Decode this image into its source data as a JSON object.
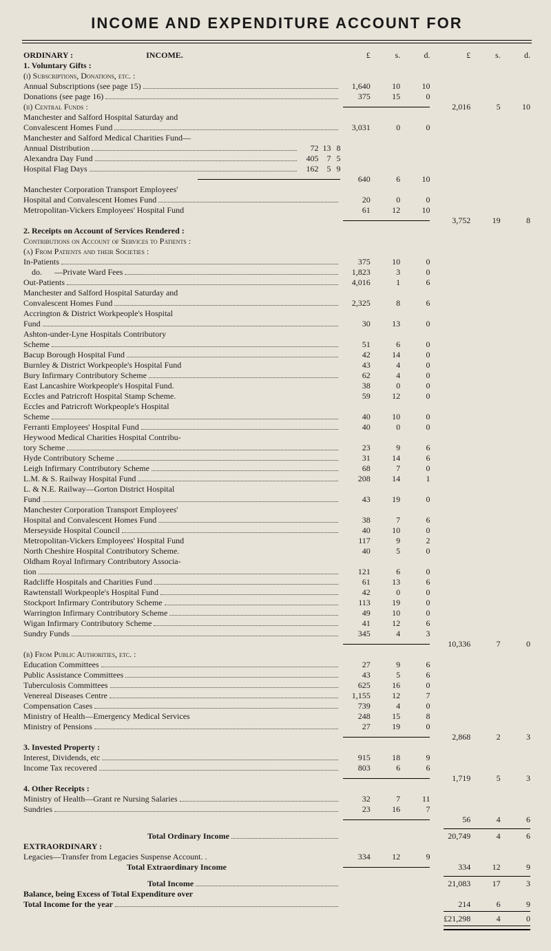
{
  "title": "INCOME AND EXPENDITURE ACCOUNT FOR",
  "columns_header": {
    "inner": [
      "£",
      "s.",
      "d."
    ],
    "outer": [
      "£",
      "s.",
      "d."
    ]
  },
  "colors": {
    "paper": "#e8e3d8",
    "ink": "#1a1a1a",
    "rule": "#000000",
    "dots": "#444444"
  },
  "ord_heading": "ORDINARY :",
  "income_heading": "INCOME.",
  "s1_heading": "1. Voluntary Gifts :",
  "s1_i_heading": "(i) Subscriptions, Donations, etc. :",
  "s1_i_r1": {
    "label": "Annual Subscriptions (see page 15)",
    "l": "1,640",
    "s": "10",
    "d": "10"
  },
  "s1_i_r2": {
    "label": "Donations (see page 16)",
    "l": "375",
    "s": "15",
    "d": "0"
  },
  "s1_ii_heading": "(ii) Central Funds :",
  "s1_ii_total": {
    "l": "2,016",
    "s": "5",
    "d": "10"
  },
  "s1_ii_a1": "Manchester and Salford Hospital Saturday and",
  "s1_ii_a2": {
    "label": "Convalescent Homes Fund",
    "l": "3,031",
    "s": "0",
    "d": "0"
  },
  "s1_ii_b1": "Manchester and Salford Medical Charities Fund—",
  "s1_ii_b2": {
    "label": "Annual Distribution",
    "pre_l": "72",
    "pre_s": "13",
    "pre_d": "8"
  },
  "s1_ii_b3": {
    "label": "Alexandra Day Fund",
    "pre_l": "405",
    "pre_s": "7",
    "pre_d": "5"
  },
  "s1_ii_b4": {
    "label": "Hospital Flag Days",
    "pre_l": "162",
    "pre_s": "5",
    "pre_d": "9"
  },
  "s1_ii_b_total": {
    "l": "640",
    "s": "6",
    "d": "10"
  },
  "s1_ii_c1": "Manchester Corporation Transport Employees'",
  "s1_ii_c2": {
    "label": "Hospital and Convalescent Homes Fund",
    "l": "20",
    "s": "0",
    "d": "0"
  },
  "s1_ii_c3": {
    "label": "Metropolitan-Vickers Employees' Hospital Fund",
    "l": "61",
    "s": "12",
    "d": "10"
  },
  "s1_total": {
    "l": "3,752",
    "s": "19",
    "d": "8"
  },
  "s2_heading": "2. Receipts on Account of Services Rendered :",
  "s2_sub1": "Contributions on Account of Services to Patients :",
  "s2_a_heading": "(a) From Patients and their Societies :",
  "s2a": [
    {
      "label": "In-Patients",
      "l": "375",
      "s": "10",
      "d": "0"
    },
    {
      "label": "    do.      —Private Ward Fees",
      "l": "1,823",
      "s": "3",
      "d": "0"
    },
    {
      "label": "Out-Patients",
      "l": "4,016",
      "s": "1",
      "d": "6"
    },
    {
      "label": "Manchester and Salford Hospital Saturday and"
    },
    {
      "label": "Convalescent Homes Fund",
      "indent": 1,
      "l": "2,325",
      "s": "8",
      "d": "6"
    },
    {
      "label": "Accrington & District Workpeople's Hospital"
    },
    {
      "label": "Fund",
      "indent": 1,
      "l": "30",
      "s": "13",
      "d": "0"
    },
    {
      "label": "Ashton-under-Lyne  Hospitals  Contributory"
    },
    {
      "label": "Scheme",
      "indent": 1,
      "l": "51",
      "s": "6",
      "d": "0"
    },
    {
      "label": "Bacup Borough Hospital Fund",
      "l": "42",
      "s": "14",
      "d": "0"
    },
    {
      "label": "Burnley & District Workpeople's Hospital Fund",
      "l": "43",
      "s": "4",
      "d": "0",
      "nodots": true
    },
    {
      "label": "Bury Infirmary Contributory Scheme",
      "l": "62",
      "s": "4",
      "d": "0"
    },
    {
      "label": "East Lancashire Workpeople's Hospital Fund.",
      "l": "38",
      "s": "0",
      "d": "0",
      "nodots": true
    },
    {
      "label": "Eccles and Patricroft Hospital Stamp Scheme.",
      "l": "59",
      "s": "12",
      "d": "0",
      "nodots": true
    },
    {
      "label": "Eccles and Patricroft Workpeople's Hospital"
    },
    {
      "label": "Scheme",
      "indent": 1,
      "l": "40",
      "s": "10",
      "d": "0"
    },
    {
      "label": "Ferranti Employees' Hospital Fund",
      "l": "40",
      "s": "0",
      "d": "0"
    },
    {
      "label": "Heywood Medical Charities Hospital Contribu-"
    },
    {
      "label": "tory Scheme",
      "indent": 1,
      "l": "23",
      "s": "9",
      "d": "6"
    },
    {
      "label": "Hyde Contributory Scheme",
      "l": "31",
      "s": "14",
      "d": "6"
    },
    {
      "label": "Leigh Infirmary Contributory Scheme",
      "l": "68",
      "s": "7",
      "d": "0"
    },
    {
      "label": "L.M. & S. Railway Hospital Fund",
      "l": "208",
      "s": "14",
      "d": "1"
    },
    {
      "label": "L. & N.E. Railway—Gorton District Hospital"
    },
    {
      "label": "Fund",
      "indent": 1,
      "l": "43",
      "s": "19",
      "d": "0"
    },
    {
      "label": "Manchester Corporation Transport Employees'"
    },
    {
      "label": "Hospital and Convalescent Homes Fund",
      "indent": 1,
      "l": "38",
      "s": "7",
      "d": "6"
    },
    {
      "label": "Merseyside Hospital Council",
      "l": "40",
      "s": "10",
      "d": "0"
    },
    {
      "label": "Metropolitan-Vickers Employees' Hospital Fund",
      "l": "117",
      "s": "9",
      "d": "2",
      "nodots": true
    },
    {
      "label": "North Cheshire Hospital Contributory Scheme.",
      "l": "40",
      "s": "5",
      "d": "0",
      "nodots": true
    },
    {
      "label": "Oldham Royal Infirmary Contributory Associa-"
    },
    {
      "label": "tion",
      "indent": 1,
      "l": "121",
      "s": "6",
      "d": "0"
    },
    {
      "label": "Radcliffe Hospitals and Charities Fund",
      "l": "61",
      "s": "13",
      "d": "6"
    },
    {
      "label": "Rawtenstall Workpeople's Hospital Fund",
      "l": "42",
      "s": "0",
      "d": "0"
    },
    {
      "label": "Stockport Infirmary Contributory Scheme",
      "l": "113",
      "s": "19",
      "d": "0"
    },
    {
      "label": "Warrington Infirmary Contributory Scheme",
      "l": "49",
      "s": "10",
      "d": "0"
    },
    {
      "label": "Wigan Infirmary Contributory Scheme",
      "l": "41",
      "s": "12",
      "d": "6"
    },
    {
      "label": "Sundry Funds",
      "l": "345",
      "s": "4",
      "d": "3"
    }
  ],
  "s2a_total": {
    "l": "10,336",
    "s": "7",
    "d": "0"
  },
  "s2_b_heading": "(b) From Public Authorities, etc. :",
  "s2b": [
    {
      "label": "Education Committees",
      "l": "27",
      "s": "9",
      "d": "6"
    },
    {
      "label": "Public Assistance Committees",
      "l": "43",
      "s": "5",
      "d": "6"
    },
    {
      "label": "Tuberculosis Committees",
      "l": "625",
      "s": "16",
      "d": "0"
    },
    {
      "label": "Venereal Diseases Centre",
      "l": "1,155",
      "s": "12",
      "d": "7"
    },
    {
      "label": "Compensation Cases",
      "l": "739",
      "s": "4",
      "d": "0"
    },
    {
      "label": "Ministry of Health—Emergency Medical Services",
      "l": "248",
      "s": "15",
      "d": "8",
      "nodots": true
    },
    {
      "label": "Ministry of Pensions",
      "l": "27",
      "s": "19",
      "d": "0"
    }
  ],
  "s2b_total": {
    "l": "2,868",
    "s": "2",
    "d": "3"
  },
  "s3_heading": "3. Invested Property :",
  "s3": [
    {
      "label": "Interest, Dividends, etc",
      "l": "915",
      "s": "18",
      "d": "9"
    },
    {
      "label": "Income Tax recovered",
      "l": "803",
      "s": "6",
      "d": "6"
    }
  ],
  "s3_total": {
    "l": "1,719",
    "s": "5",
    "d": "3"
  },
  "s4_heading": "4. Other Receipts :",
  "s4": [
    {
      "label": "Ministry of Health—Grant re Nursing Salaries",
      "l": "32",
      "s": "7",
      "d": "11"
    },
    {
      "label": "Sundries",
      "l": "23",
      "s": "16",
      "d": "7"
    }
  ],
  "s4_total": {
    "l": "56",
    "s": "4",
    "d": "6"
  },
  "tot_ord_label": "Total Ordinary Income",
  "tot_ord": {
    "l": "20,749",
    "s": "4",
    "d": "6"
  },
  "extra_heading": "EXTRAORDINARY :",
  "extra_r1": {
    "label": "Legacies—Transfer from Legacies Suspense Account. .",
    "l": "334",
    "s": "12",
    "d": "9"
  },
  "extra_r2_label": "Total Extraordinary Income",
  "extra_total": {
    "l": "334",
    "s": "12",
    "d": "9"
  },
  "tot_inc_label": "Total Income",
  "tot_inc": {
    "l": "21,083",
    "s": "17",
    "d": "3"
  },
  "bal_label": "Balance, being Excess of Total Expenditure over",
  "bal_label2": "Total Income for the year",
  "bal": {
    "l": "214",
    "s": "6",
    "d": "9"
  },
  "grand": {
    "l": "£21,298",
    "s": "4",
    "d": "0"
  }
}
